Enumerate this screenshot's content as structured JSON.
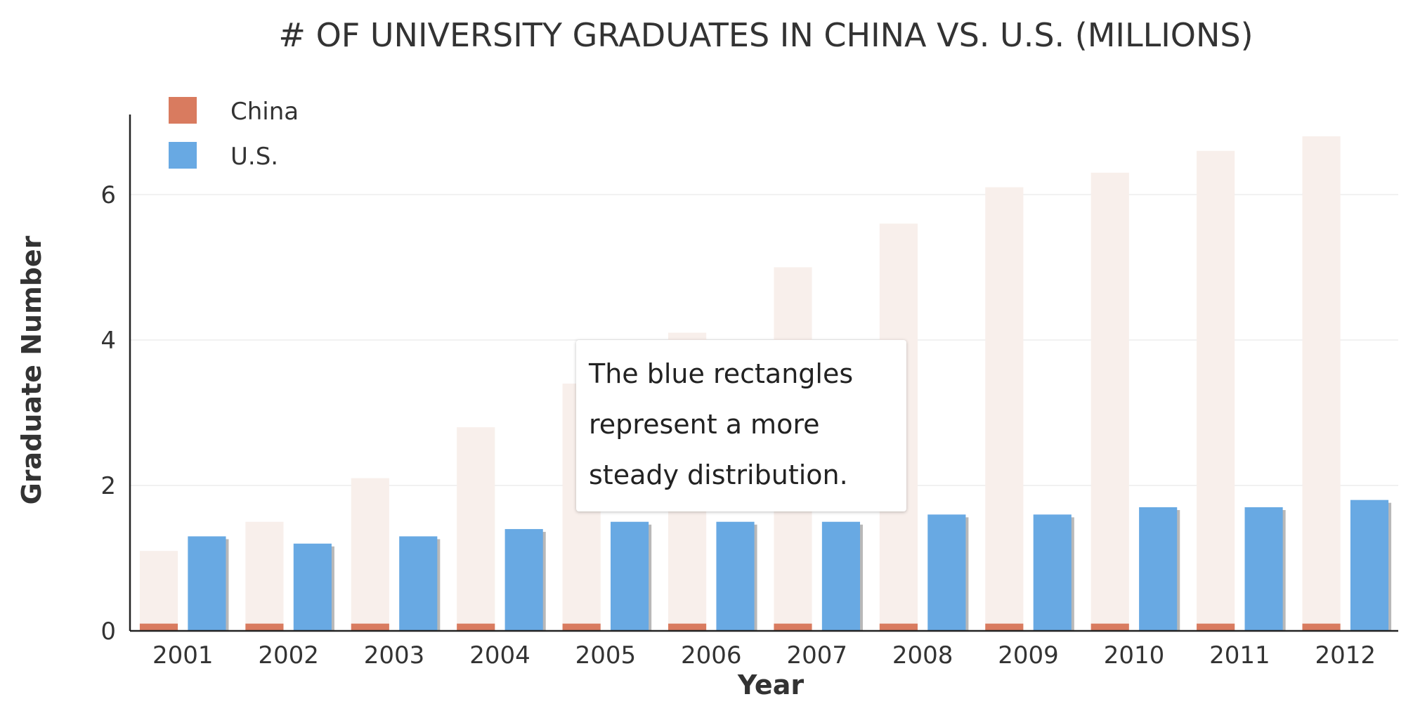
{
  "chart_data": {
    "type": "bar",
    "title": "# OF UNIVERSITY GRADUATES IN CHINA VS. U.S. (MILLIONS)",
    "xlabel": "Year",
    "ylabel": "Graduate Number",
    "categories": [
      "2001",
      "2002",
      "2003",
      "2004",
      "2005",
      "2006",
      "2007",
      "2008",
      "2009",
      "2010",
      "2011",
      "2012"
    ],
    "series": [
      {
        "name": "China",
        "color": "#d97b5f",
        "values": [
          1.1,
          1.5,
          2.1,
          2.8,
          3.4,
          4.1,
          5.0,
          5.6,
          6.1,
          6.3,
          6.6,
          6.8
        ],
        "rendered_values": [
          0.1,
          0.1,
          0.1,
          0.1,
          0.1,
          0.1,
          0.1,
          0.1,
          0.1,
          0.1,
          0.1,
          0.1
        ],
        "ghost_color": "#f8efeb"
      },
      {
        "name": "U.S.",
        "color": "#68a9e3",
        "values": [
          1.3,
          1.2,
          1.3,
          1.4,
          1.5,
          1.5,
          1.5,
          1.6,
          1.6,
          1.7,
          1.7,
          1.8
        ]
      }
    ],
    "ylim": [
      0,
      7.1
    ],
    "yticks": [
      0,
      2,
      4,
      6
    ],
    "grid": true,
    "legend": "top-left"
  },
  "annotation": {
    "lines": [
      "The blue rectangles",
      "represent a more",
      "steady distribution."
    ]
  }
}
